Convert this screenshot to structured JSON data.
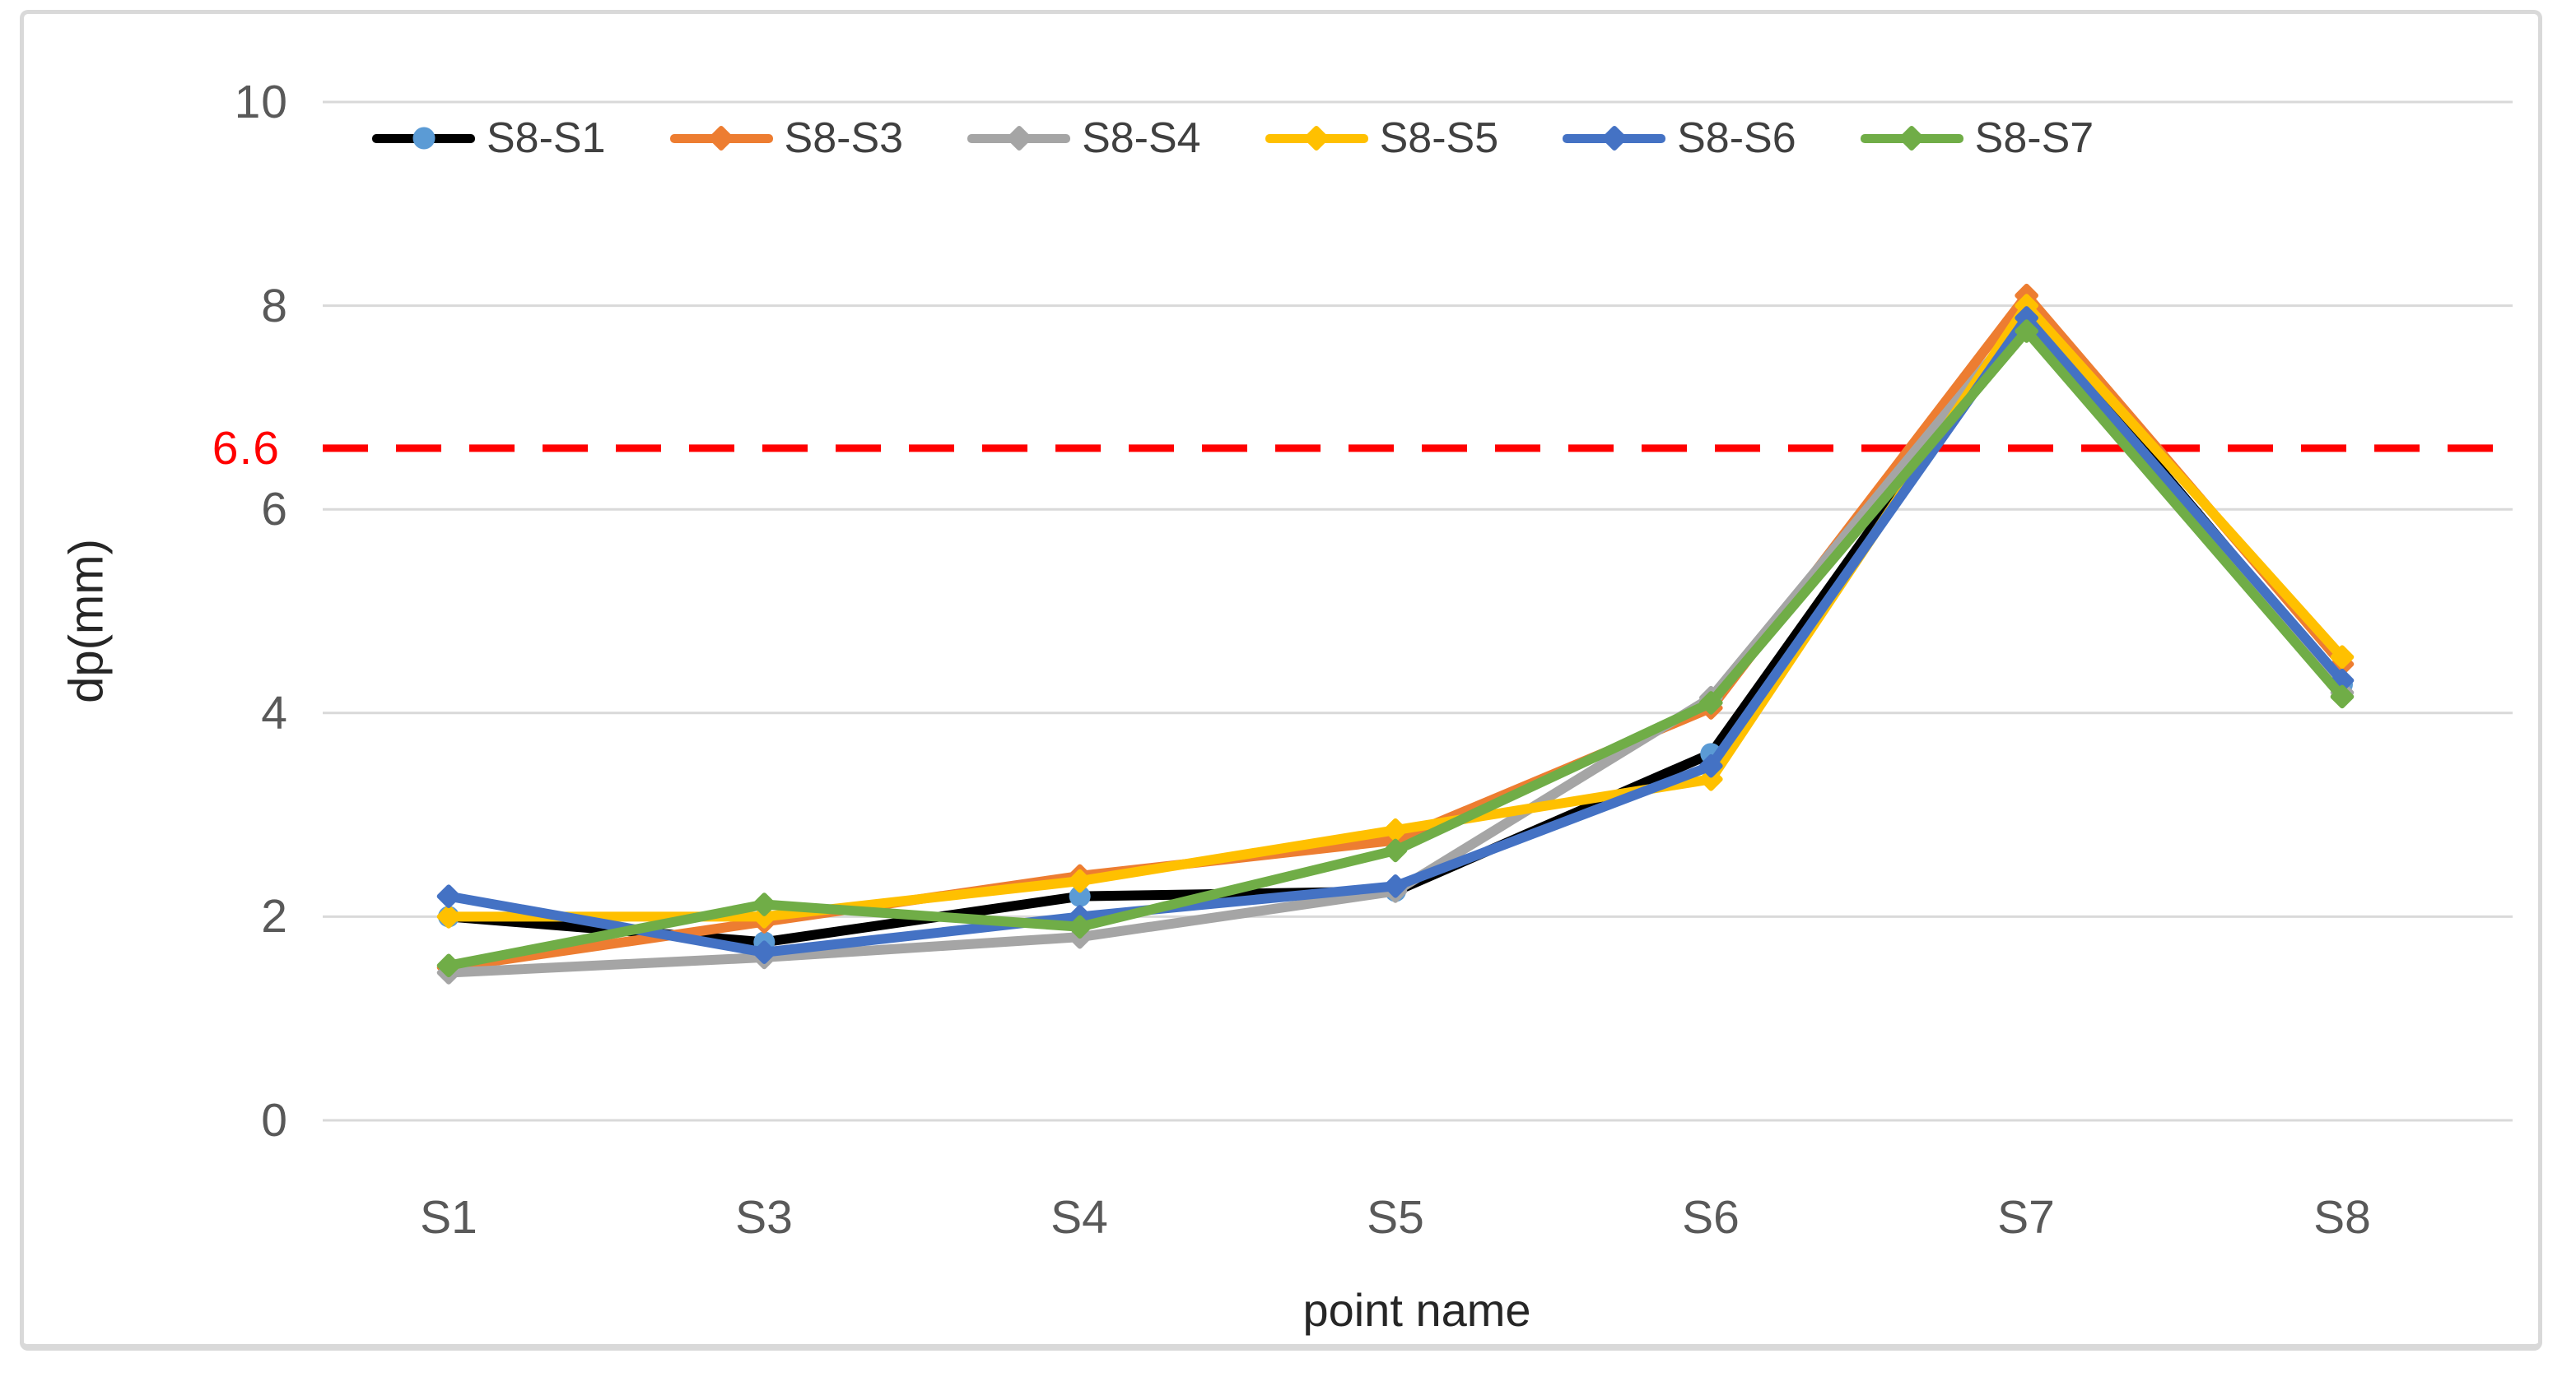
{
  "chart_data": {
    "type": "line",
    "title": "",
    "xlabel": "point name",
    "ylabel": "dp(mm)",
    "ylim": [
      0,
      10
    ],
    "grid": "horizontal",
    "legend_position": "top",
    "categories": [
      "S1",
      "S3",
      "S4",
      "S5",
      "S6",
      "S7",
      "S8"
    ],
    "yticks": [
      {
        "label": "10",
        "value": 10
      },
      {
        "label": "8",
        "value": 8
      },
      {
        "label": "6",
        "value": 6
      },
      {
        "label": "4",
        "value": 4
      },
      {
        "label": "2",
        "value": 2
      },
      {
        "label": "0",
        "value": 0
      }
    ],
    "threshold": {
      "label": "6.6",
      "value": 6.6,
      "color": "#ff0000",
      "style": "dashed"
    },
    "series": [
      {
        "name": "S8-S1",
        "color": "#000000",
        "marker": "circle",
        "marker_color": "#5b9bd5",
        "values": [
          2.0,
          1.75,
          2.2,
          2.25,
          3.6,
          7.95,
          4.28
        ]
      },
      {
        "name": "S8-S3",
        "color": "#ed7d31",
        "marker": "diamond",
        "marker_color": "#ed7d31",
        "values": [
          1.5,
          1.95,
          2.4,
          2.75,
          4.05,
          8.1,
          4.48
        ]
      },
      {
        "name": "S8-S4",
        "color": "#a5a5a5",
        "marker": "diamond",
        "marker_color": "#a5a5a5",
        "values": [
          1.45,
          1.6,
          1.8,
          2.25,
          4.15,
          7.9,
          4.2
        ]
      },
      {
        "name": "S8-S5",
        "color": "#ffc000",
        "marker": "diamond",
        "marker_color": "#ffc000",
        "values": [
          2.0,
          2.0,
          2.35,
          2.85,
          3.35,
          8.0,
          4.55
        ]
      },
      {
        "name": "S8-S6",
        "color": "#4472c4",
        "marker": "diamond",
        "marker_color": "#4472c4",
        "values": [
          2.2,
          1.65,
          2.0,
          2.3,
          3.48,
          7.88,
          4.32
        ]
      },
      {
        "name": "S8-S7",
        "color": "#70ad47",
        "marker": "diamond",
        "marker_color": "#70ad47",
        "values": [
          1.52,
          2.12,
          1.9,
          2.65,
          4.1,
          7.75,
          4.16
        ]
      }
    ],
    "gridline_color": "#d9d9d9",
    "axis_label_color": "#595959"
  }
}
